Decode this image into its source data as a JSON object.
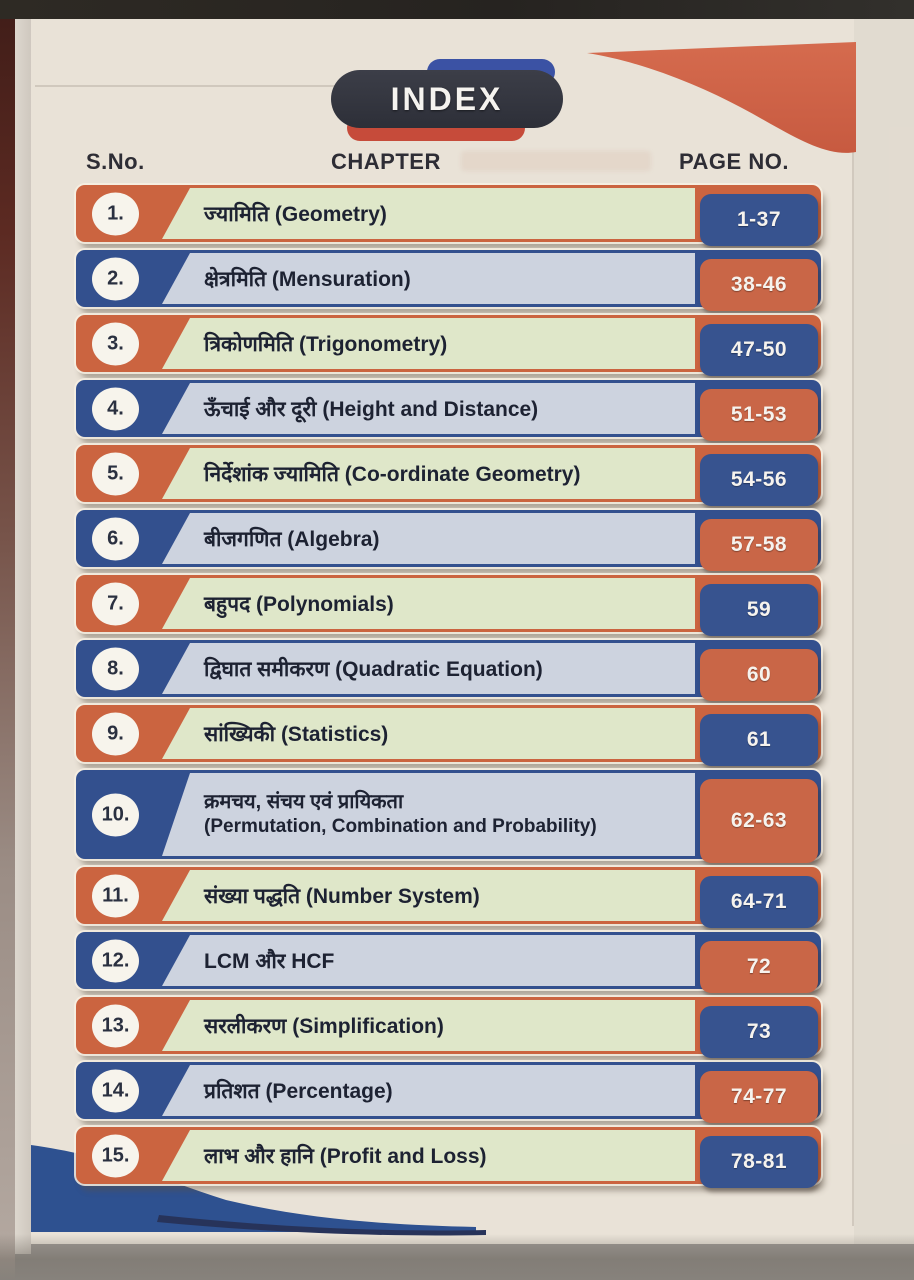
{
  "header": {
    "title": "INDEX",
    "columns": {
      "sno": "S.No.",
      "chapter": "CHAPTER",
      "page": "PAGE NO."
    }
  },
  "colors": {
    "orange": "#cb6440",
    "blue": "#33508e",
    "panel_green": "#dfe7c9",
    "panel_blue": "#cdd3df",
    "badge_blue": "#37538f",
    "badge_orange": "#c96647",
    "page_cream": "#e9e2d7",
    "accent_pill_blue": "#3b52a4",
    "accent_pill_red": "#c64b3a",
    "swoosh_orange": "#d2654a",
    "swoosh_blue": "#2e5190",
    "swoosh_navy": "#27335a"
  },
  "rows": [
    {
      "sno": "1.",
      "chapter": "ज्यामिति (Geometry)",
      "pages": "1-37",
      "theme": "orange"
    },
    {
      "sno": "2.",
      "chapter": "क्षेत्रमिति (Mensuration)",
      "pages": "38-46",
      "theme": "blue"
    },
    {
      "sno": "3.",
      "chapter": "त्रिकोणमिति (Trigonometry)",
      "pages": "47-50",
      "theme": "orange"
    },
    {
      "sno": "4.",
      "chapter": "ऊँचाई और दूरी (Height and Distance)",
      "pages": "51-53",
      "theme": "blue"
    },
    {
      "sno": "5.",
      "chapter": "निर्देशांक ज्यामिति (Co-ordinate Geometry)",
      "pages": "54-56",
      "theme": "orange"
    },
    {
      "sno": "6.",
      "chapter": "बीजगणित (Algebra)",
      "pages": "57-58",
      "theme": "blue"
    },
    {
      "sno": "7.",
      "chapter": "बहुपद (Polynomials)",
      "pages": "59",
      "theme": "orange"
    },
    {
      "sno": "8.",
      "chapter": "द्विघात समीकरण (Quadratic Equation)",
      "pages": "60",
      "theme": "blue"
    },
    {
      "sno": "9.",
      "chapter": "सांख्यिकी (Statistics)",
      "pages": "61",
      "theme": "orange"
    },
    {
      "sno": "10.",
      "chapter": "क्रमचय, संचय एवं प्रायिकता",
      "chapter_line2": "(Permutation, Combination and Probability)",
      "pages": "62-63",
      "theme": "blue"
    },
    {
      "sno": "11.",
      "chapter": "संख्या पद्धति (Number System)",
      "pages": "64-71",
      "theme": "orange"
    },
    {
      "sno": "12.",
      "chapter": "LCM और HCF",
      "pages": "72",
      "theme": "blue"
    },
    {
      "sno": "13.",
      "chapter": "सरलीकरण (Simplification)",
      "pages": "73",
      "theme": "orange"
    },
    {
      "sno": "14.",
      "chapter": "प्रतिशत (Percentage)",
      "pages": "74-77",
      "theme": "blue"
    },
    {
      "sno": "15.",
      "chapter": "लाभ और हानि (Profit and Loss)",
      "pages": "78-81",
      "theme": "orange"
    }
  ]
}
